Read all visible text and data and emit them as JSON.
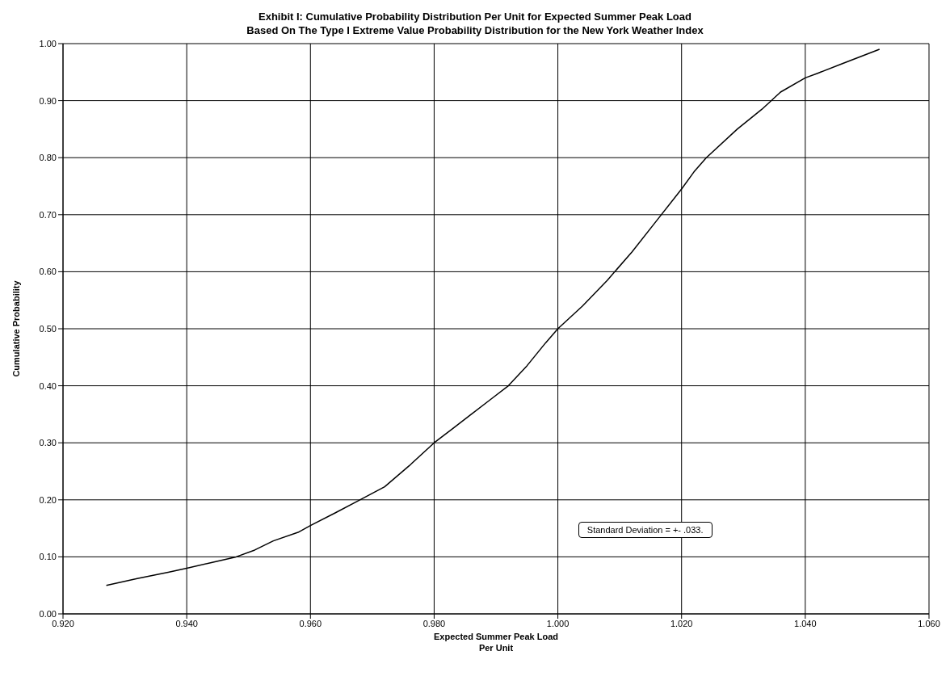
{
  "chart_data": {
    "type": "line",
    "title": "Exhibit I: Cumulative Probability Distribution Per Unit for Expected  Summer Peak Load",
    "subtitle": "Based On The Type I Extreme Value Probability Distribution for the New York Weather Index",
    "xlabel": "Expected Summer Peak Load\nPer Unit",
    "ylabel": "Cumulative Probability",
    "x": [
      0.927,
      0.932,
      0.937,
      0.94,
      0.944,
      0.948,
      0.951,
      0.954,
      0.958,
      0.96,
      0.964,
      0.968,
      0.972,
      0.976,
      0.98,
      0.983,
      0.986,
      0.989,
      0.992,
      0.995,
      0.998,
      1.0,
      1.004,
      1.008,
      1.012,
      1.016,
      1.02,
      1.022,
      1.024,
      1.029,
      1.033,
      1.036,
      1.04,
      1.042,
      1.046,
      1.052
    ],
    "series": [
      {
        "color": "#000000",
        "values": [
          0.05,
          0.062,
          0.073,
          0.08,
          0.09,
          0.1,
          0.112,
          0.128,
          0.143,
          0.155,
          0.177,
          0.2,
          0.223,
          0.26,
          0.3,
          0.325,
          0.35,
          0.375,
          0.4,
          0.435,
          0.475,
          0.5,
          0.54,
          0.585,
          0.635,
          0.69,
          0.745,
          0.775,
          0.8,
          0.85,
          0.885,
          0.915,
          0.94,
          0.948,
          0.965,
          0.99
        ]
      }
    ],
    "xlim": [
      0.92,
      1.06
    ],
    "xticks": [
      {
        "value": 0.92,
        "label": "0.920"
      },
      {
        "value": 0.94,
        "label": "0.940"
      },
      {
        "value": 0.96,
        "label": "0.960"
      },
      {
        "value": 0.98,
        "label": "0.980"
      },
      {
        "value": 1.0,
        "label": "1.000"
      },
      {
        "value": 1.02,
        "label": "1.020"
      },
      {
        "value": 1.04,
        "label": "1.040"
      },
      {
        "value": 1.06,
        "label": "1.060"
      }
    ],
    "ylim": [
      0,
      1
    ],
    "yticks": [
      {
        "value": 0,
        "label": "0.00"
      },
      {
        "value": 0.1,
        "label": "0.10"
      },
      {
        "value": 0.2,
        "label": "0.20"
      },
      {
        "value": 0.3,
        "label": "0.30"
      },
      {
        "value": 0.4,
        "label": "0.40"
      },
      {
        "value": 0.5,
        "label": "0.50"
      },
      {
        "value": 0.6,
        "label": "0.60"
      },
      {
        "value": 0.7,
        "label": "0.70"
      },
      {
        "value": 0.8,
        "label": "0.80"
      },
      {
        "value": 0.9,
        "label": "0.90"
      },
      {
        "value": 1.0,
        "label": "1.00"
      }
    ],
    "grid": true,
    "legend": false,
    "marker": "none",
    "line_style": "solid",
    "annotations": [
      "Standard Deviation = +- .033."
    ]
  }
}
